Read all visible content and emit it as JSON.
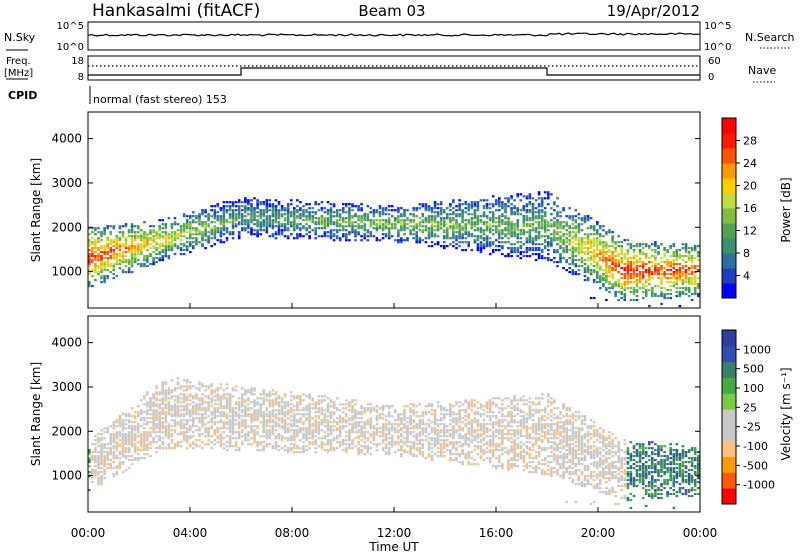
{
  "header": {
    "station": "Hankasalmi (fitACF)",
    "beam": "Beam 03",
    "date": "19/Apr/2012"
  },
  "top_strip": {
    "nsky_label": "N.Sky",
    "nsky_ticks": [
      "10^5",
      "10^0"
    ],
    "nsearch_label": "N.Search",
    "nsearch_ticks": [
      "10^5",
      "10^0"
    ],
    "freq_label_line1": "Freq.",
    "freq_label_line2": "[MHz]",
    "freq_ticks": [
      "18",
      "8"
    ],
    "nave_label": "Nave",
    "nave_ticks": [
      "60",
      "0"
    ],
    "cpid_label": "CPID",
    "cpid_text": "normal (fast stereo) 153"
  },
  "x_axis": {
    "label": "Time UT",
    "ticks": [
      "00:00",
      "04:00",
      "08:00",
      "12:00",
      "16:00",
      "20:00",
      "00:00"
    ],
    "range_hours": [
      0,
      24
    ]
  },
  "chart_data": [
    {
      "type": "heatmap",
      "title": "",
      "ylabel": "Slant Range [km]",
      "yticks": [
        1000,
        2000,
        3000,
        4000
      ],
      "ylim": [
        180,
        4600
      ],
      "xlim": [
        0,
        24
      ],
      "colorbar_label": "Power [dB]",
      "colorbar_ticks": [
        "28",
        "24",
        "20",
        "16",
        "12",
        "8",
        "4"
      ],
      "colors": [
        "#0000ff",
        "#1f3fbf",
        "#2f6f9f",
        "#3c8f6f",
        "#55a055",
        "#7fbf3f",
        "#bfdf3f",
        "#ffcc00",
        "#ff9900",
        "#ff5500",
        "#ff1a00",
        "#ff0000"
      ],
      "bands": [
        {
          "t": 0,
          "r": 1300,
          "w": 600,
          "p": 28
        },
        {
          "t": 3,
          "r": 1700,
          "w": 400,
          "p": 20
        },
        {
          "t": 6,
          "r": 2200,
          "w": 400,
          "p": 12
        },
        {
          "t": 12,
          "r": 2050,
          "w": 350,
          "p": 16
        },
        {
          "t": 18,
          "r": 2000,
          "w": 700,
          "p": 14
        },
        {
          "t": 21,
          "r": 1000,
          "w": 600,
          "p": 28
        },
        {
          "t": 24,
          "r": 1000,
          "w": 500,
          "p": 26
        }
      ]
    },
    {
      "type": "heatmap",
      "title": "",
      "ylabel": "Slant Range [km]",
      "yticks": [
        1000,
        2000,
        3000,
        4000
      ],
      "ylim": [
        180,
        4600
      ],
      "xlim": [
        0,
        24
      ],
      "colorbar_label": "Velocity [m s⁻¹]",
      "colorbar_ticks": [
        "1000",
        "500",
        "100",
        "25",
        "-25",
        "-100",
        "-500",
        "-1000"
      ],
      "colors": [
        "#ff0000",
        "#ff5a00",
        "#ff9a00",
        "#ffc080",
        "#c8c8c8",
        "#c8c8c8",
        "#77cc44",
        "#44aa44",
        "#3a7f6a",
        "#2f4fb0",
        "#2f3fa0"
      ],
      "bands": [
        {
          "t": 0,
          "r": 1200,
          "w": 500,
          "v": 1
        },
        {
          "t": 3,
          "r": 2400,
          "w": 700,
          "v": 0
        },
        {
          "t": 12,
          "r": 2000,
          "w": 500,
          "v": 0
        },
        {
          "t": 18,
          "r": 1900,
          "w": 800,
          "v": 0
        },
        {
          "t": 21,
          "r": 1100,
          "w": 600,
          "v": 2
        },
        {
          "t": 24,
          "r": 1100,
          "w": 500,
          "v": 2
        }
      ]
    }
  ]
}
